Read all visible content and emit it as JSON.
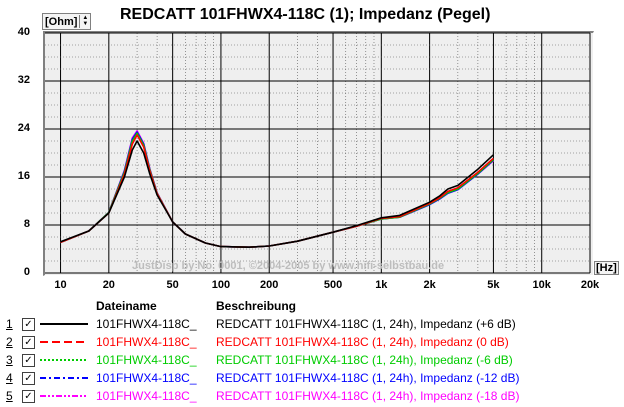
{
  "title": "REDCATT 101FHWX4-118C (1); Impedanz (Pegel)",
  "unit_label": "[Ohm]",
  "spin_up": "▲",
  "spin_down": "▼",
  "x_unit_label": "[Hz]",
  "watermark": "JustDisp by No. 0001, ©2004-2005 by www.hifi-selbstbau.de",
  "legend": {
    "header_filename": "Dateiname",
    "header_description": "Beschreibung",
    "rows": [
      {
        "num": "1",
        "checked": true,
        "filename": "101FHWX4-118C_",
        "description": "REDCATT 101FHWX4-118C (1, 24h), Impedanz (+6 dB)",
        "color": "#000000",
        "style": "solid"
      },
      {
        "num": "2",
        "checked": true,
        "filename": "101FHWX4-118C_",
        "description": "REDCATT 101FHWX4-118C (1, 24h), Impedanz (0 dB)",
        "color": "#ff0000",
        "style": "dash"
      },
      {
        "num": "3",
        "checked": true,
        "filename": "101FHWX4-118C_",
        "description": "REDCATT 101FHWX4-118C (1, 24h), Impedanz (-6 dB)",
        "color": "#00cc00",
        "style": "dot"
      },
      {
        "num": "4",
        "checked": true,
        "filename": "101FHWX4-118C_",
        "description": "REDCATT 101FHWX4-118C (1, 24h), Impedanz (-12 dB)",
        "color": "#0000ff",
        "style": "dashdot"
      },
      {
        "num": "5",
        "checked": true,
        "filename": "101FHWX4-118C_",
        "description": "REDCATT 101FHWX4-118C (1, 24h), Impedanz (-18 dB)",
        "color": "#ff00ff",
        "style": "dashdotdot"
      }
    ]
  },
  "chart_data": {
    "type": "line",
    "title": "REDCATT 101FHWX4-118C (1); Impedanz (Pegel)",
    "xlabel": "[Hz]",
    "ylabel": "[Ohm]",
    "x_scale": "log",
    "xlim": [
      8,
      20000
    ],
    "ylim": [
      0,
      40
    ],
    "grid": true,
    "y_ticks": [
      "0",
      "8",
      "16",
      "24",
      "32",
      "40"
    ],
    "x_ticks": [
      {
        "v": 10,
        "label": "10"
      },
      {
        "v": 20,
        "label": "20"
      },
      {
        "v": 50,
        "label": "50"
      },
      {
        "v": 100,
        "label": "100"
      },
      {
        "v": 200,
        "label": "200"
      },
      {
        "v": 500,
        "label": "500"
      },
      {
        "v": 1000,
        "label": "1k"
      },
      {
        "v": 2000,
        "label": "2k"
      },
      {
        "v": 5000,
        "label": "5k"
      },
      {
        "v": 10000,
        "label": "10k"
      },
      {
        "v": 20000,
        "label": "20k"
      }
    ],
    "series": [
      {
        "name": "REDCATT 101FHWX4-118C (1, 24h), Impedanz (+6 dB)",
        "x": [
          10,
          15,
          20,
          25,
          28,
          30,
          33,
          36,
          40,
          50,
          60,
          80,
          100,
          150,
          200,
          300,
          500,
          700,
          1000,
          1300,
          2000,
          2300,
          2600,
          3000,
          4000,
          5000
        ],
        "y": [
          5.2,
          7.0,
          10.0,
          16.0,
          20.5,
          22.0,
          20.0,
          16.5,
          13.0,
          8.5,
          6.5,
          5.0,
          4.4,
          4.3,
          4.5,
          5.3,
          6.8,
          7.9,
          9.2,
          9.6,
          11.8,
          12.8,
          14.0,
          14.6,
          17.3,
          19.7
        ]
      },
      {
        "name": "REDCATT 101FHWX4-118C (1, 24h), Impedanz (0 dB)",
        "x": [
          10,
          15,
          20,
          25,
          28,
          30,
          33,
          36,
          40,
          50,
          60,
          80,
          100,
          150,
          200,
          300,
          500,
          700,
          1000,
          1300,
          2000,
          2300,
          2600,
          3000,
          4000,
          5000
        ],
        "y": [
          5.1,
          7.0,
          10.0,
          16.5,
          21.5,
          23.0,
          21.0,
          17.0,
          13.2,
          8.5,
          6.5,
          5.0,
          4.4,
          4.3,
          4.5,
          5.3,
          6.8,
          7.8,
          9.1,
          9.4,
          11.6,
          12.5,
          13.6,
          14.2,
          16.8,
          19.1
        ]
      },
      {
        "name": "REDCATT 101FHWX4-118C (1, 24h), Impedanz (-6 dB)",
        "x": [
          10,
          15,
          20,
          25,
          28,
          30,
          33,
          36,
          40,
          50,
          60,
          80,
          100,
          150,
          200,
          300,
          500,
          700,
          1000,
          1300,
          2000,
          2300,
          2600,
          3000,
          4000,
          5000
        ],
        "y": [
          5.1,
          7.0,
          10.1,
          16.8,
          22.0,
          23.3,
          21.3,
          17.2,
          13.3,
          8.5,
          6.5,
          5.0,
          4.4,
          4.3,
          4.5,
          5.3,
          6.8,
          7.8,
          9.0,
          9.3,
          11.5,
          12.4,
          13.4,
          14.0,
          16.6,
          18.9
        ]
      },
      {
        "name": "REDCATT 101FHWX4-118C (1, 24h), Impedanz (-12 dB)",
        "x": [
          10,
          15,
          20,
          25,
          28,
          30,
          33,
          36,
          40,
          50,
          60,
          80,
          100,
          150,
          200,
          300,
          500,
          700,
          1000,
          1300,
          2000,
          2300,
          2600,
          3000,
          4000,
          5000
        ],
        "y": [
          5.1,
          7.0,
          10.1,
          17.0,
          22.3,
          23.5,
          21.5,
          17.3,
          13.3,
          8.5,
          6.5,
          5.0,
          4.4,
          4.3,
          4.5,
          5.3,
          6.8,
          7.8,
          9.0,
          9.3,
          11.4,
          12.3,
          13.3,
          13.9,
          16.5,
          18.8
        ]
      },
      {
        "name": "REDCATT 101FHWX4-118C (1, 24h), Impedanz (-18 dB)",
        "x": [
          10,
          15,
          20,
          25,
          28,
          30,
          33,
          36,
          40,
          50,
          60,
          80,
          100,
          150,
          200,
          300,
          500,
          700,
          1000,
          1300,
          2000,
          2300,
          2600,
          3000,
          4000,
          5000
        ],
        "y": [
          5.1,
          7.0,
          10.1,
          17.1,
          22.5,
          23.7,
          21.6,
          17.4,
          13.4,
          8.5,
          6.5,
          5.0,
          4.4,
          4.3,
          4.5,
          5.3,
          6.8,
          7.8,
          9.0,
          9.3,
          11.4,
          12.3,
          13.3,
          13.9,
          16.5,
          18.7
        ]
      }
    ]
  }
}
